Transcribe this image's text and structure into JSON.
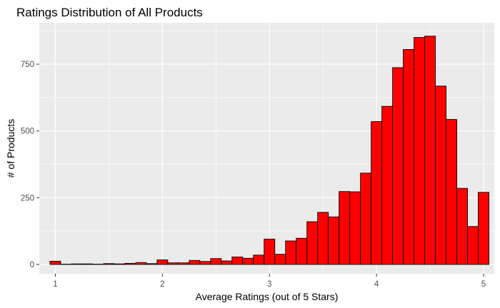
{
  "chart_data": {
    "type": "bar",
    "title": "Ratings Distribution of All Products",
    "xlabel": "Average Ratings (out of 5 Stars)",
    "ylabel": "# of Products",
    "xlim": [
      0.85,
      5.1
    ],
    "ylim": [
      -35,
      905
    ],
    "x_ticks": [
      1,
      2,
      3,
      4,
      5
    ],
    "y_ticks": [
      0,
      250,
      500,
      750
    ],
    "x_tick_labels": [
      "1",
      "2",
      "3",
      "4",
      "5"
    ],
    "y_tick_labels": [
      "0",
      "250",
      "500",
      "750"
    ],
    "grid": true,
    "bin_width": 0.1,
    "bin_start": 0.95,
    "values": [
      12,
      1,
      2,
      2,
      1,
      3,
      2,
      4,
      7,
      3,
      17,
      6,
      6,
      15,
      11,
      22,
      13,
      28,
      23,
      35,
      95,
      38,
      88,
      98,
      160,
      195,
      178,
      273,
      272,
      342,
      535,
      592,
      737,
      805,
      850,
      855,
      668,
      543,
      285,
      142,
      270
    ],
    "colors": {
      "bar_fill": "#ff0000",
      "bar_stroke": "#000000",
      "panel": "#ebebeb",
      "grid": "#ffffff"
    }
  }
}
